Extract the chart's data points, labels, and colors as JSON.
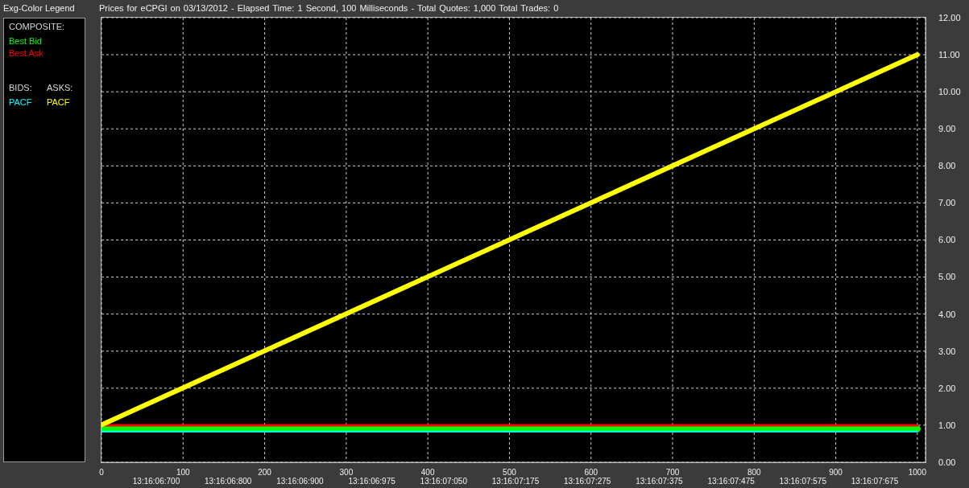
{
  "chart_data": {
    "type": "line",
    "title": "Prices for eCPGI on 03/13/2012 - Elapsed Time: 1 Second, 100 Milliseconds - Total Quotes: 1,000 Total Trades: 0",
    "legend_title": "Exg-Color Legend",
    "annotations": [
      "COMPOSITE:",
      "BIDS:",
      "ASKS:",
      "13:16:06:700",
      "13:16:06:800",
      "13:16:06:900",
      "13:16:06:975",
      "13:16:07:050",
      "13:16:07:175",
      "13:16:07:275",
      "13:16:07:375",
      "13:16:07:475",
      "13:16:07:575",
      "13:16:07:675"
    ],
    "x": [
      0,
      1000
    ],
    "series": [
      {
        "name": "Best Bid",
        "color": "#00ff00",
        "values": [
          0.9,
          0.9
        ]
      },
      {
        "name": "Best Ask",
        "color": "#ff0000",
        "values": [
          1.0,
          1.0
        ]
      },
      {
        "name": "PACF",
        "color": "#00ffff",
        "values": [
          0.83,
          0.83
        ]
      },
      {
        "name": "PACF",
        "color": "#ffff00",
        "values": [
          1.01,
          11.0
        ]
      }
    ],
    "xlim": [
      0,
      1010
    ],
    "xticks": [
      0,
      100,
      200,
      300,
      400,
      500,
      600,
      700,
      800,
      900,
      1000
    ],
    "ylim": [
      0,
      12
    ],
    "yticks": [
      {
        "value": 0,
        "label": "0.00"
      },
      {
        "value": 1,
        "label": "1.00"
      },
      {
        "value": 2,
        "label": "2.00"
      },
      {
        "value": 3,
        "label": "3.00"
      },
      {
        "value": 4,
        "label": "4.00"
      },
      {
        "value": 5,
        "label": "5.00"
      },
      {
        "value": 6,
        "label": "6.00"
      },
      {
        "value": 7,
        "label": "7.00"
      },
      {
        "value": 8,
        "label": "8.00"
      },
      {
        "value": 9,
        "label": "9.00"
      },
      {
        "value": 10,
        "label": "10.00"
      },
      {
        "value": 11,
        "label": "11.00"
      },
      {
        "value": 12,
        "label": "12.00"
      }
    ],
    "grid": true,
    "legend": "left"
  }
}
